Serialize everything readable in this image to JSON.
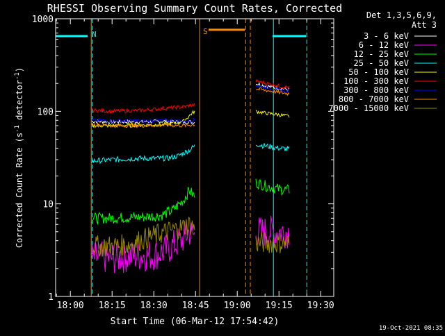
{
  "chart_data": {
    "type": "line",
    "title": "RHESSI Observing Summary Count Rates, Corrected",
    "xlabel": "Start Time (06-Mar-12 17:54:42)",
    "ylabel_parts": {
      "main": "Corrected Count Rate (s",
      "sup1": "-1",
      "mid": " detector",
      "sup2": "-1",
      "end": ")"
    },
    "x_units": "minutes since 17:54:42",
    "xlim": [
      0,
      100
    ],
    "ylim": [
      1,
      1000
    ],
    "yscale": "log",
    "x_ticks": [
      {
        "value": 5.3,
        "label": "18:00"
      },
      {
        "value": 20.3,
        "label": "18:15"
      },
      {
        "value": 35.3,
        "label": "18:30"
      },
      {
        "value": 50.3,
        "label": "18:45"
      },
      {
        "value": 65.3,
        "label": "19:00"
      },
      {
        "value": 80.3,
        "label": "19:15"
      },
      {
        "value": 95.3,
        "label": "19:30"
      }
    ],
    "y_ticks": [
      {
        "value": 1,
        "label": "1"
      },
      {
        "value": 10,
        "label": "10"
      },
      {
        "value": 100,
        "label": "100"
      },
      {
        "value": 1000,
        "label": "1000"
      }
    ],
    "legend_header": [
      "Det 1,3,5,6,9,",
      "Att 3"
    ],
    "series": [
      {
        "name": "3 - 6 keV",
        "color": "#ffffff",
        "segments": [
          [
            [
              13,
              78
            ],
            [
              20,
              77
            ],
            [
              30,
              77
            ],
            [
              40,
              78
            ],
            [
              46,
              76
            ],
            [
              48,
              77
            ],
            [
              50,
              76
            ]
          ],
          [
            [
              72,
              200
            ],
            [
              75,
              190
            ],
            [
              79,
              180
            ],
            [
              84,
              172
            ]
          ]
        ],
        "noise": 0.02
      },
      {
        "name": "6 - 12 keV",
        "color": "#ff00ff",
        "segments": [
          [
            [
              13,
              2.6
            ],
            [
              20,
              2.6
            ],
            [
              26,
              2.7
            ],
            [
              30,
              2.8
            ],
            [
              35,
              2.8
            ],
            [
              40,
              3.2
            ],
            [
              45,
              4.0
            ],
            [
              48,
              5.0
            ],
            [
              50,
              4.5
            ]
          ],
          [
            [
              72,
              5.0
            ],
            [
              78,
              5.0
            ],
            [
              84,
              5.0
            ]
          ]
        ],
        "noise": 0.18
      },
      {
        "name": "12 - 25 keV",
        "color": "#00ff00",
        "segments": [
          [
            [
              13,
              7.0
            ],
            [
              20,
              7.0
            ],
            [
              30,
              7.2
            ],
            [
              38,
              7.5
            ],
            [
              42,
              8.5
            ],
            [
              46,
              11
            ],
            [
              48,
              14
            ],
            [
              50,
              12
            ]
          ],
          [
            [
              72,
              17
            ],
            [
              76,
              15.5
            ],
            [
              80,
              14.5
            ],
            [
              84,
              14
            ]
          ]
        ],
        "noise": 0.06
      },
      {
        "name": "25 - 50 keV",
        "color": "#00ffff",
        "segments": [
          [
            [
              13,
              29
            ],
            [
              20,
              30
            ],
            [
              30,
              31
            ],
            [
              40,
              31
            ],
            [
              44,
              33
            ],
            [
              48,
              38
            ],
            [
              50,
              42
            ]
          ],
          [
            [
              72,
              44
            ],
            [
              76,
              42
            ],
            [
              80,
              40
            ],
            [
              84,
              39
            ]
          ]
        ],
        "noise": 0.03
      },
      {
        "name": "50 - 100 keV",
        "color": "#ffff00",
        "segments": [
          [
            [
              13,
              70
            ],
            [
              20,
              70
            ],
            [
              30,
              71
            ],
            [
              40,
              72
            ],
            [
              46,
              78
            ],
            [
              49,
              95
            ],
            [
              50,
              100
            ]
          ],
          [
            [
              72,
              100
            ],
            [
              76,
              95
            ],
            [
              80,
              92
            ],
            [
              84,
              88
            ]
          ]
        ],
        "noise": 0.02
      },
      {
        "name": "100 - 300 keV",
        "color": "#ff0000",
        "segments": [
          [
            [
              13,
              103
            ],
            [
              20,
              100
            ],
            [
              30,
              102
            ],
            [
              40,
              108
            ],
            [
              46,
              112
            ],
            [
              50,
              118
            ]
          ],
          [
            [
              72,
              212
            ],
            [
              76,
              200
            ],
            [
              80,
              188
            ],
            [
              84,
              180
            ]
          ]
        ],
        "noise": 0.02
      },
      {
        "name": "300 - 800 keV",
        "color": "#0000ff",
        "segments": [
          [
            [
              13,
              80
            ],
            [
              20,
              79
            ],
            [
              30,
              79
            ],
            [
              40,
              80
            ],
            [
              46,
              78
            ],
            [
              50,
              80
            ]
          ],
          [
            [
              72,
              190
            ],
            [
              76,
              180
            ],
            [
              80,
              170
            ],
            [
              84,
              165
            ]
          ]
        ],
        "noise": 0.02
      },
      {
        "name": "800 - 7000 keV",
        "color": "#ff8c00",
        "segments": [
          [
            [
              13,
              72
            ],
            [
              20,
              70
            ],
            [
              30,
              70
            ],
            [
              40,
              71
            ],
            [
              46,
              70
            ],
            [
              50,
              72
            ]
          ],
          [
            [
              72,
              175
            ],
            [
              76,
              168
            ],
            [
              80,
              160
            ],
            [
              84,
              155
            ]
          ]
        ],
        "noise": 0.02
      },
      {
        "name": "7000 - 15000 keV",
        "color": "#9a8a00",
        "segments": [
          [
            [
              13,
              3.5
            ],
            [
              20,
              3.5
            ],
            [
              26,
              3.6
            ],
            [
              30,
              4.0
            ],
            [
              35,
              4.5
            ],
            [
              40,
              5.0
            ],
            [
              45,
              5.5
            ],
            [
              48,
              6.0
            ],
            [
              50,
              5.5
            ]
          ],
          [
            [
              72,
              3.8
            ],
            [
              78,
              3.8
            ],
            [
              84,
              3.8
            ]
          ]
        ],
        "noise": 0.12
      }
    ],
    "annotations": {
      "night_bars": [
        {
          "x_start": 0,
          "x_end": 11.5,
          "y": 650,
          "color": "#00ffff"
        },
        {
          "x_start": 78,
          "x_end": 90,
          "y": 650,
          "color": "#00ffff"
        }
      ],
      "saa_bar": {
        "x_start": 55,
        "x_end": 68,
        "y": 760,
        "color": "#ff8c00"
      },
      "night_marker": {
        "x": 12,
        "label": "N",
        "color": "#00ffff"
      },
      "saa_marker": {
        "x": 54,
        "label": "S",
        "color": "#ff8c00"
      },
      "night_solid_lines": [
        0,
        78.3
      ],
      "night_dashed_lines": [
        13.2,
        90.3
      ],
      "saa_solid_lines": [
        12.8,
        51.8
      ],
      "saa_dashed_lines": [
        68.3,
        70
      ]
    },
    "timestamp": "19-Oct-2021 08:35"
  }
}
